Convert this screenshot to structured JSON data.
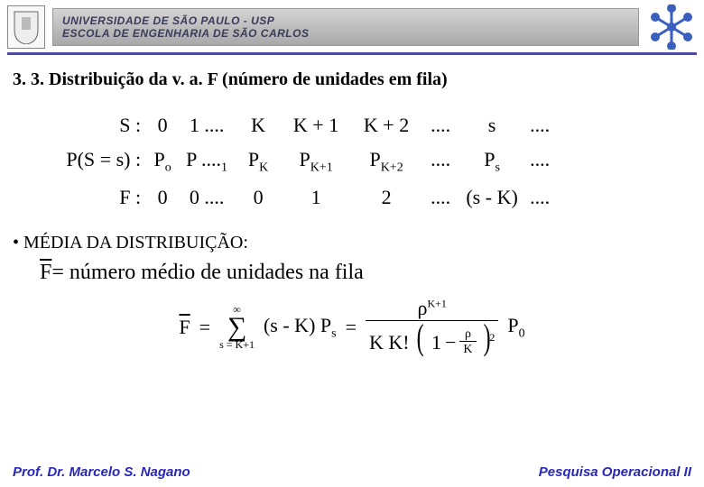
{
  "header": {
    "uni_line1": "UNIVERSIDADE DE SÃO PAULO - USP",
    "uni_line2": "ESCOLA DE ENGENHARIA DE SÃO CARLOS",
    "rule_color": "#4a4aa0"
  },
  "section_title": "3. 3. Distribuição da v. a. F (número de unidades em fila)",
  "table": {
    "rows": [
      {
        "label": "S   :",
        "cells": [
          "0",
          "1 ....",
          "K",
          "K + 1",
          "K + 2",
          "....",
          "s",
          "...."
        ]
      },
      {
        "label": "P(S = s)  :",
        "cells": [
          "P",
          "P  ....",
          "P",
          "P",
          "P",
          "....",
          "P",
          "...."
        ],
        "subs": [
          "o",
          "1",
          "K",
          "K+1",
          "K+2",
          "",
          "s",
          ""
        ]
      },
      {
        "label": "F   :",
        "cells": [
          "0",
          "0 ....",
          "0",
          "1",
          "2",
          "....",
          "(s - K)",
          "...."
        ]
      }
    ]
  },
  "bullet": "• MÉDIA DA DISTRIBUIÇÃO:",
  "fbar_text": " = número médio de unidades na fila",
  "fbar_sym": "F",
  "formula": {
    "lhs": "F",
    "sum_top": "∞",
    "sum_bot": "s = K+1",
    "sum_body": "(s - K) P",
    "sum_body_sub": "s",
    "rho": "ρ",
    "exp": "K+1",
    "K": "K",
    "Kfact": "K K!",
    "one": "1",
    "sq": "2",
    "P0": "P",
    "P0sub": "0"
  },
  "footer": {
    "left": "Prof. Dr. Marcelo S. Nagano",
    "right": "Pesquisa Operacional II"
  },
  "colors": {
    "footer_text": "#2828b8",
    "text": "#000000"
  }
}
